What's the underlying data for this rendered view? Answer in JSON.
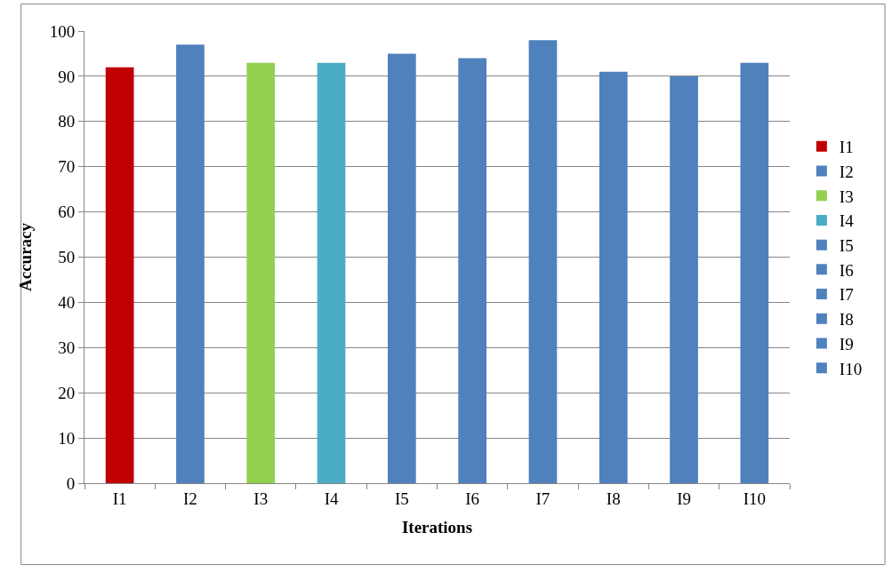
{
  "chart_data": {
    "type": "bar",
    "xlabel": "Iterations",
    "ylabel": "Accuracy",
    "categories": [
      "I1",
      "I2",
      "I3",
      "I4",
      "I5",
      "I6",
      "I7",
      "I8",
      "I9",
      "I10"
    ],
    "series": [
      {
        "name": "I1",
        "color": "#c00000",
        "values": [
          92,
          null,
          null,
          null,
          null,
          null,
          null,
          null,
          null,
          null
        ]
      },
      {
        "name": "I2",
        "color": "#4f81bd",
        "values": [
          null,
          97,
          null,
          null,
          null,
          null,
          null,
          null,
          null,
          null
        ]
      },
      {
        "name": "I3",
        "color": "#92d050",
        "values": [
          null,
          null,
          93,
          null,
          null,
          null,
          null,
          null,
          null,
          null
        ]
      },
      {
        "name": "I4",
        "color": "#4bacc6",
        "values": [
          null,
          null,
          null,
          93,
          null,
          null,
          null,
          null,
          null,
          null
        ]
      },
      {
        "name": "I5",
        "color": "#4f81bd",
        "values": [
          null,
          null,
          null,
          null,
          95,
          null,
          null,
          null,
          null,
          null
        ]
      },
      {
        "name": "I6",
        "color": "#4f81bd",
        "values": [
          null,
          null,
          null,
          null,
          null,
          94,
          null,
          null,
          null,
          null
        ]
      },
      {
        "name": "I7",
        "color": "#4f81bd",
        "values": [
          null,
          null,
          null,
          null,
          null,
          null,
          98,
          null,
          null,
          null
        ]
      },
      {
        "name": "I8",
        "color": "#4f81bd",
        "values": [
          null,
          null,
          null,
          null,
          null,
          null,
          null,
          91,
          null,
          null
        ]
      },
      {
        "name": "I9",
        "color": "#4f81bd",
        "values": [
          null,
          null,
          null,
          null,
          null,
          null,
          null,
          null,
          90,
          null
        ]
      },
      {
        "name": "I10",
        "color": "#4f81bd",
        "values": [
          null,
          null,
          null,
          null,
          null,
          null,
          null,
          null,
          null,
          93
        ]
      }
    ],
    "ylim": [
      0,
      100
    ],
    "yticks": [
      0,
      10,
      20,
      30,
      40,
      50,
      60,
      70,
      80,
      90,
      100
    ],
    "grid": "y",
    "legend": "right"
  }
}
